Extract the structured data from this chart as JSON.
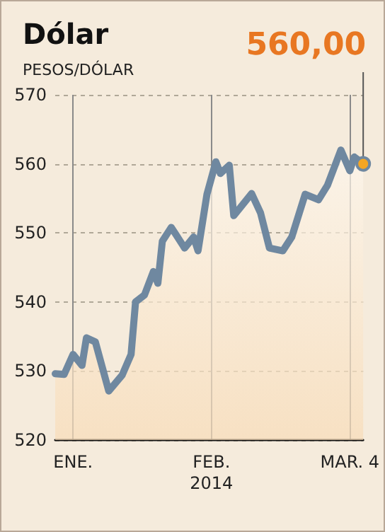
{
  "chart_data": {
    "type": "area",
    "title": "Dólar",
    "ylabel": "PESOS/DÓLAR",
    "x": [
      "2013-12-28",
      "2013-12-30",
      "2014-01-01",
      "2014-01-03",
      "2014-01-04",
      "2014-01-06",
      "2014-01-09",
      "2014-01-12",
      "2014-01-14",
      "2014-01-15",
      "2014-01-17",
      "2014-01-19",
      "2014-01-20",
      "2014-01-21",
      "2014-01-23",
      "2014-01-26",
      "2014-01-28",
      "2014-01-29",
      "2014-01-31",
      "2014-02-02",
      "2014-02-03",
      "2014-02-05",
      "2014-02-06",
      "2014-02-10",
      "2014-02-12",
      "2014-02-14",
      "2014-02-17",
      "2014-02-19",
      "2014-02-22",
      "2014-02-25",
      "2014-02-27",
      "2014-03-02",
      "2014-03-04",
      "2014-03-05",
      "2014-03-07"
    ],
    "series": [
      {
        "color": "#6f88a0",
        "values": [
          529.6,
          529.5,
          532.4,
          530.8,
          534.8,
          534.2,
          527.1,
          529.4,
          532.4,
          540,
          541,
          544.4,
          542.7,
          548.8,
          550.8,
          547.8,
          549.4,
          547.4,
          555.6,
          560.3,
          558.6,
          559.8,
          552.5,
          555.7,
          552.9,
          547.8,
          547.4,
          549.4,
          555.6,
          554.8,
          556.9,
          562,
          559,
          561,
          560
        ]
      }
    ],
    "xlim": [
      "2013-12-28",
      "2014-03-07"
    ],
    "xticks": [
      {
        "value": "2014-01-01",
        "label": "ENE."
      },
      {
        "value": "2014-02-01",
        "label": "FEB.\n2014"
      },
      {
        "value": "2014-03-04",
        "label": "MAR. 4"
      }
    ],
    "ylim": [
      520,
      570
    ],
    "yticks": [
      520,
      530,
      540,
      550,
      560,
      570
    ],
    "grid": true,
    "annotations": [
      {
        "text": "560,00",
        "x": "2014-03-07",
        "y": 560
      }
    ]
  }
}
